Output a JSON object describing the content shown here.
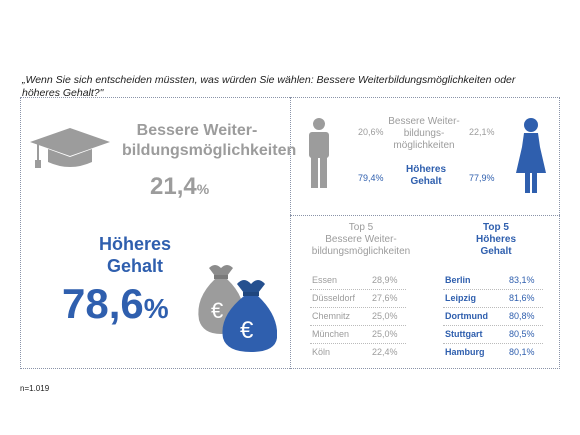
{
  "question": "„Wenn Sie sich entscheiden müssten, was würden Sie wählen: Bessere Weiterbildungsmöglichkeiten oder höheres Gehalt?\"",
  "total": {
    "bessere_label_line1": "Bessere Weiter-",
    "bessere_label_line2": "bildungsmöglichkeiten",
    "bessere_value": "21,4",
    "bessere_unit": "%",
    "hoeheres_label_line1": "Höheres",
    "hoeheres_label_line2": "Gehalt",
    "hoeheres_value": "78,6",
    "hoeheres_unit": "%",
    "euro_symbol": "€"
  },
  "gender": {
    "men_bessere": "20,6%",
    "women_bessere": "22,1%",
    "men_hoeheres": "79,4%",
    "women_hoeheres": "77,9%",
    "bessere_line1": "Bessere Weiter-",
    "bessere_line2": "bildungs-",
    "bessere_line3": "möglichkeiten",
    "hoeheres_line1": "Höheres",
    "hoeheres_line2": "Gehalt"
  },
  "top5": {
    "left_head_line1": "Top 5",
    "left_head_line2": "Bessere Weiter-",
    "left_head_line3": "bildungsmöglichkeiten",
    "right_head_line1": "Top 5",
    "right_head_line2": "Höheres",
    "right_head_line3": "Gehalt",
    "left": [
      {
        "city": "Essen",
        "value": "28,9%"
      },
      {
        "city": "Düsseldorf",
        "value": "27,6%"
      },
      {
        "city": "Chemnitz",
        "value": "25,0%"
      },
      {
        "city": "München",
        "value": "25,0%"
      },
      {
        "city": "Köln",
        "value": "22,4%"
      }
    ],
    "right": [
      {
        "city": "Berlin",
        "value": "83,1%"
      },
      {
        "city": "Leipzig",
        "value": "81,6%"
      },
      {
        "city": "Dortmund",
        "value": "80,8%"
      },
      {
        "city": "Stuttgart",
        "value": "80,5%"
      },
      {
        "city": "Hamburg",
        "value": "80,1%"
      }
    ]
  },
  "footnote": "n=1.019",
  "colors": {
    "blue": "#2f5fae",
    "grey": "#9c9c9c"
  },
  "chart_data": {
    "type": "table",
    "overall": [
      {
        "option": "Bessere Weiterbildungsmöglichkeiten",
        "percent": 21.4
      },
      {
        "option": "Höheres Gehalt",
        "percent": 78.6
      }
    ],
    "by_gender": {
      "men": {
        "Bessere Weiterbildungsmöglichkeiten": 20.6,
        "Höheres Gehalt": 79.4
      },
      "women": {
        "Bessere Weiterbildungsmöglichkeiten": 22.1,
        "Höheres Gehalt": 77.9
      }
    },
    "top5_bessere_weiterbildung": [
      {
        "city": "Essen",
        "percent": 28.9
      },
      {
        "city": "Düsseldorf",
        "percent": 27.6
      },
      {
        "city": "Chemnitz",
        "percent": 25.0
      },
      {
        "city": "München",
        "percent": 25.0
      },
      {
        "city": "Köln",
        "percent": 22.4
      }
    ],
    "top5_hoeheres_gehalt": [
      {
        "city": "Berlin",
        "percent": 83.1
      },
      {
        "city": "Leipzig",
        "percent": 81.6
      },
      {
        "city": "Dortmund",
        "percent": 80.8
      },
      {
        "city": "Stuttgart",
        "percent": 80.5
      },
      {
        "city": "Hamburg",
        "percent": 80.1
      }
    ]
  }
}
